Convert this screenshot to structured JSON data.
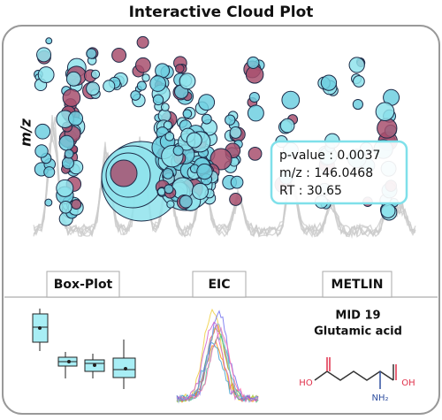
{
  "title": "Interactive Cloud Plot",
  "cloud_plot": {
    "y_axis_label": "m/z",
    "tooltip": {
      "lines": [
        "p-value : 0.0037",
        "m/z : 146.0468",
        "RT : 30.65"
      ]
    }
  },
  "tabs": [
    "Box-Plot",
    "EIC",
    "METLIN"
  ],
  "metlin": {
    "id": "MID 19",
    "name": "Glutamic acid",
    "atoms": [
      "HO",
      "OH",
      "NH₂"
    ]
  }
}
